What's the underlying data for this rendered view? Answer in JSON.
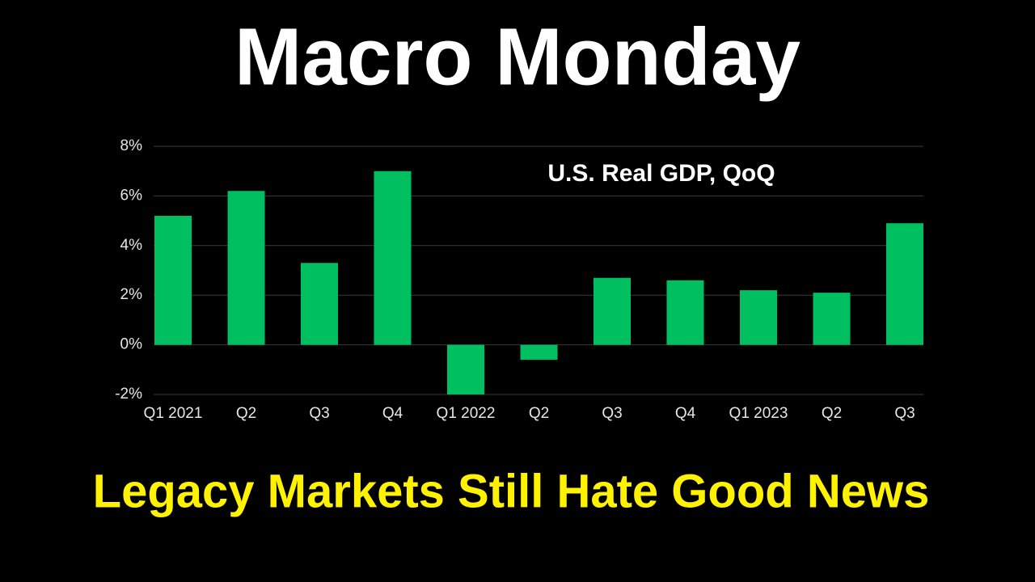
{
  "headline": "Macro Monday",
  "caption": "Legacy Markets Still Hate Good News",
  "chart_data": {
    "type": "bar",
    "title": "U.S. Real GDP, QoQ",
    "categories": [
      "Q1 2021",
      "Q2",
      "Q3",
      "Q4",
      "Q1 2022",
      "Q2",
      "Q3",
      "Q4",
      "Q1 2023",
      "Q2",
      "Q3"
    ],
    "values": [
      5.2,
      6.2,
      3.3,
      7.0,
      -2.0,
      -0.6,
      2.7,
      2.6,
      2.2,
      2.1,
      4.9
    ],
    "color": "#00bf60",
    "ylim": [
      -2,
      8
    ],
    "yticks": [
      {
        "value": -2,
        "label": "-2%"
      },
      {
        "value": 0,
        "label": "0%"
      },
      {
        "value": 2,
        "label": "2%"
      },
      {
        "value": 4,
        "label": "4%"
      },
      {
        "value": 6,
        "label": "6%"
      },
      {
        "value": 8,
        "label": "8%"
      }
    ],
    "grid": true
  }
}
